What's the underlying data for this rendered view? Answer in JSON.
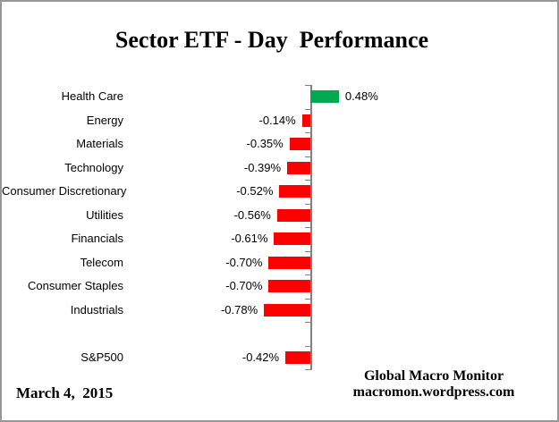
{
  "title": "Sector ETF - Day  Performance",
  "footer": {
    "date": "March 4,  2015",
    "credit_line1": "Global Macro Monitor",
    "credit_line2": "macromon.wordpress.com"
  },
  "chart_data": {
    "type": "bar",
    "orientation": "horizontal",
    "title": "Sector ETF - Day  Performance",
    "categories": [
      "Health Care",
      "Energy",
      "Materials",
      "Technology",
      "Consumer Discretionary",
      "Utilities",
      "Financials",
      "Telecom",
      "Consumer Staples",
      "Industrials",
      "",
      "S&P500"
    ],
    "values": [
      0.48,
      -0.14,
      -0.35,
      -0.39,
      -0.52,
      -0.56,
      -0.61,
      -0.7,
      -0.7,
      -0.78,
      null,
      -0.42
    ],
    "value_labels": [
      "0.48%",
      "-0.14%",
      "-0.35%",
      "-0.39%",
      "-0.52%",
      "-0.56%",
      "-0.61%",
      "-0.70%",
      "-0.70%",
      "-0.78%",
      "",
      "-0.42%"
    ],
    "xlim": [
      -0.9,
      0.6
    ],
    "grid": false,
    "legend": false,
    "data_labels": "outside_end",
    "positive_color": "#00A84F",
    "negative_color": "#FF0000",
    "axis_color": "#808080",
    "background_color": "#FFFFFF",
    "border_color": "#979797"
  }
}
